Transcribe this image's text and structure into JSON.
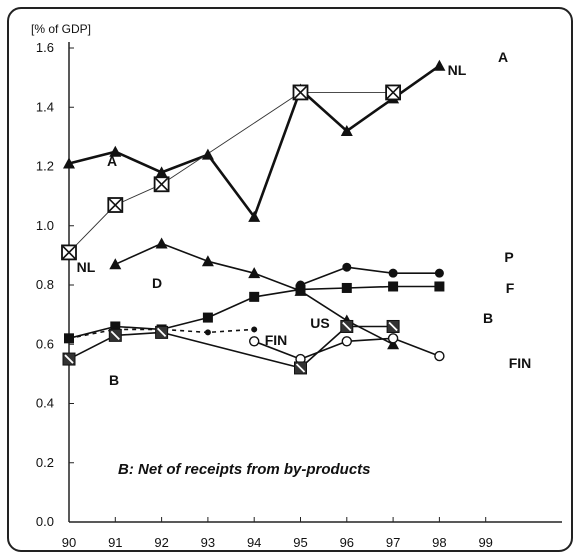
{
  "chart_data": {
    "type": "line",
    "unit_label": "[% of GDP]",
    "note": "B: Net of receipts from by-products",
    "x": [
      "90",
      "91",
      "92",
      "93",
      "94",
      "95",
      "96",
      "97",
      "98",
      "99"
    ],
    "y_ticks": [
      "0.0",
      "0.2",
      "0.4",
      "0.6",
      "0.8",
      "1.0",
      "1.2",
      "1.4",
      "1.6"
    ],
    "ylim": [
      0,
      1.6
    ],
    "grid": false,
    "series": [
      {
        "name": "A",
        "marker": "triangle",
        "style": "solid-thick",
        "values": [
          1.21,
          1.25,
          1.18,
          1.24,
          1.03,
          1.46,
          1.32,
          1.43,
          1.54,
          null
        ]
      },
      {
        "name": "NL",
        "marker": "crossed-square",
        "style": "solid-thin",
        "values": [
          0.91,
          1.07,
          1.14,
          null,
          null,
          1.45,
          null,
          1.45,
          null,
          null
        ]
      },
      {
        "name": "D",
        "marker": "triangle",
        "style": "solid",
        "values": [
          null,
          0.87,
          0.94,
          0.88,
          0.84,
          0.78,
          0.68,
          0.6,
          null,
          null
        ]
      },
      {
        "name": "P",
        "marker": "circle",
        "style": "solid",
        "values": [
          null,
          null,
          null,
          null,
          null,
          0.8,
          0.86,
          0.84,
          0.84,
          null
        ]
      },
      {
        "name": "F",
        "marker": "square",
        "style": "solid",
        "values": [
          0.62,
          0.66,
          0.65,
          0.69,
          0.76,
          0.785,
          0.79,
          0.795,
          0.795,
          null
        ]
      },
      {
        "name": "US",
        "marker": "dot",
        "style": "dashed",
        "values": [
          0.62,
          0.65,
          0.65,
          0.64,
          0.65,
          null,
          null,
          null,
          null,
          null
        ]
      },
      {
        "name": "FIN",
        "marker": "open-circle",
        "style": "solid",
        "values": [
          null,
          null,
          null,
          null,
          0.61,
          0.55,
          0.61,
          0.62,
          0.56,
          null
        ]
      },
      {
        "name": "B",
        "marker": "square-b",
        "style": "solid",
        "values": [
          0.55,
          0.63,
          0.64,
          null,
          null,
          0.52,
          0.66,
          0.66,
          null,
          null
        ]
      }
    ],
    "labels": [
      {
        "text": "A",
        "series": "A"
      },
      {
        "text": "A",
        "series": "A"
      },
      {
        "text": "NL",
        "series": "NL"
      },
      {
        "text": "NL",
        "series": "NL"
      },
      {
        "text": "D",
        "series": "D"
      },
      {
        "text": "P",
        "series": "P"
      },
      {
        "text": "F",
        "series": "F"
      },
      {
        "text": "US",
        "series": "US"
      },
      {
        "text": "FIN",
        "series": "FIN"
      },
      {
        "text": "FIN",
        "series": "FIN"
      },
      {
        "text": "B",
        "series": "B"
      },
      {
        "text": "B",
        "series": "B"
      }
    ]
  }
}
